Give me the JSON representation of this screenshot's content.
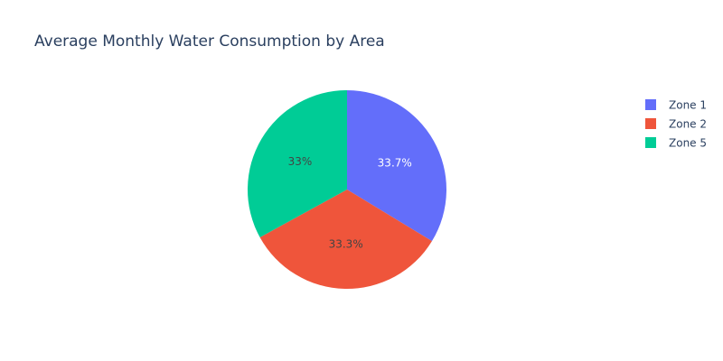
{
  "chart_data": {
    "type": "pie",
    "title": "Average Monthly Water Consumption by Area",
    "labels": [
      "Zone 1",
      "Zone 2",
      "Zone 5"
    ],
    "values": [
      33.7,
      33.3,
      33.0
    ],
    "text_labels": [
      "33.7%",
      "33.3%",
      "33%"
    ],
    "colors": [
      "#636efa",
      "#ef553b",
      "#00cc96"
    ],
    "label_colors": [
      "#ffffff",
      "#444444",
      "#444444"
    ],
    "legend": {
      "position": "top-right",
      "items": [
        "Zone 1",
        "Zone 2",
        "Zone 5"
      ]
    },
    "start_angle_deg": 90,
    "direction": "clockwise"
  }
}
